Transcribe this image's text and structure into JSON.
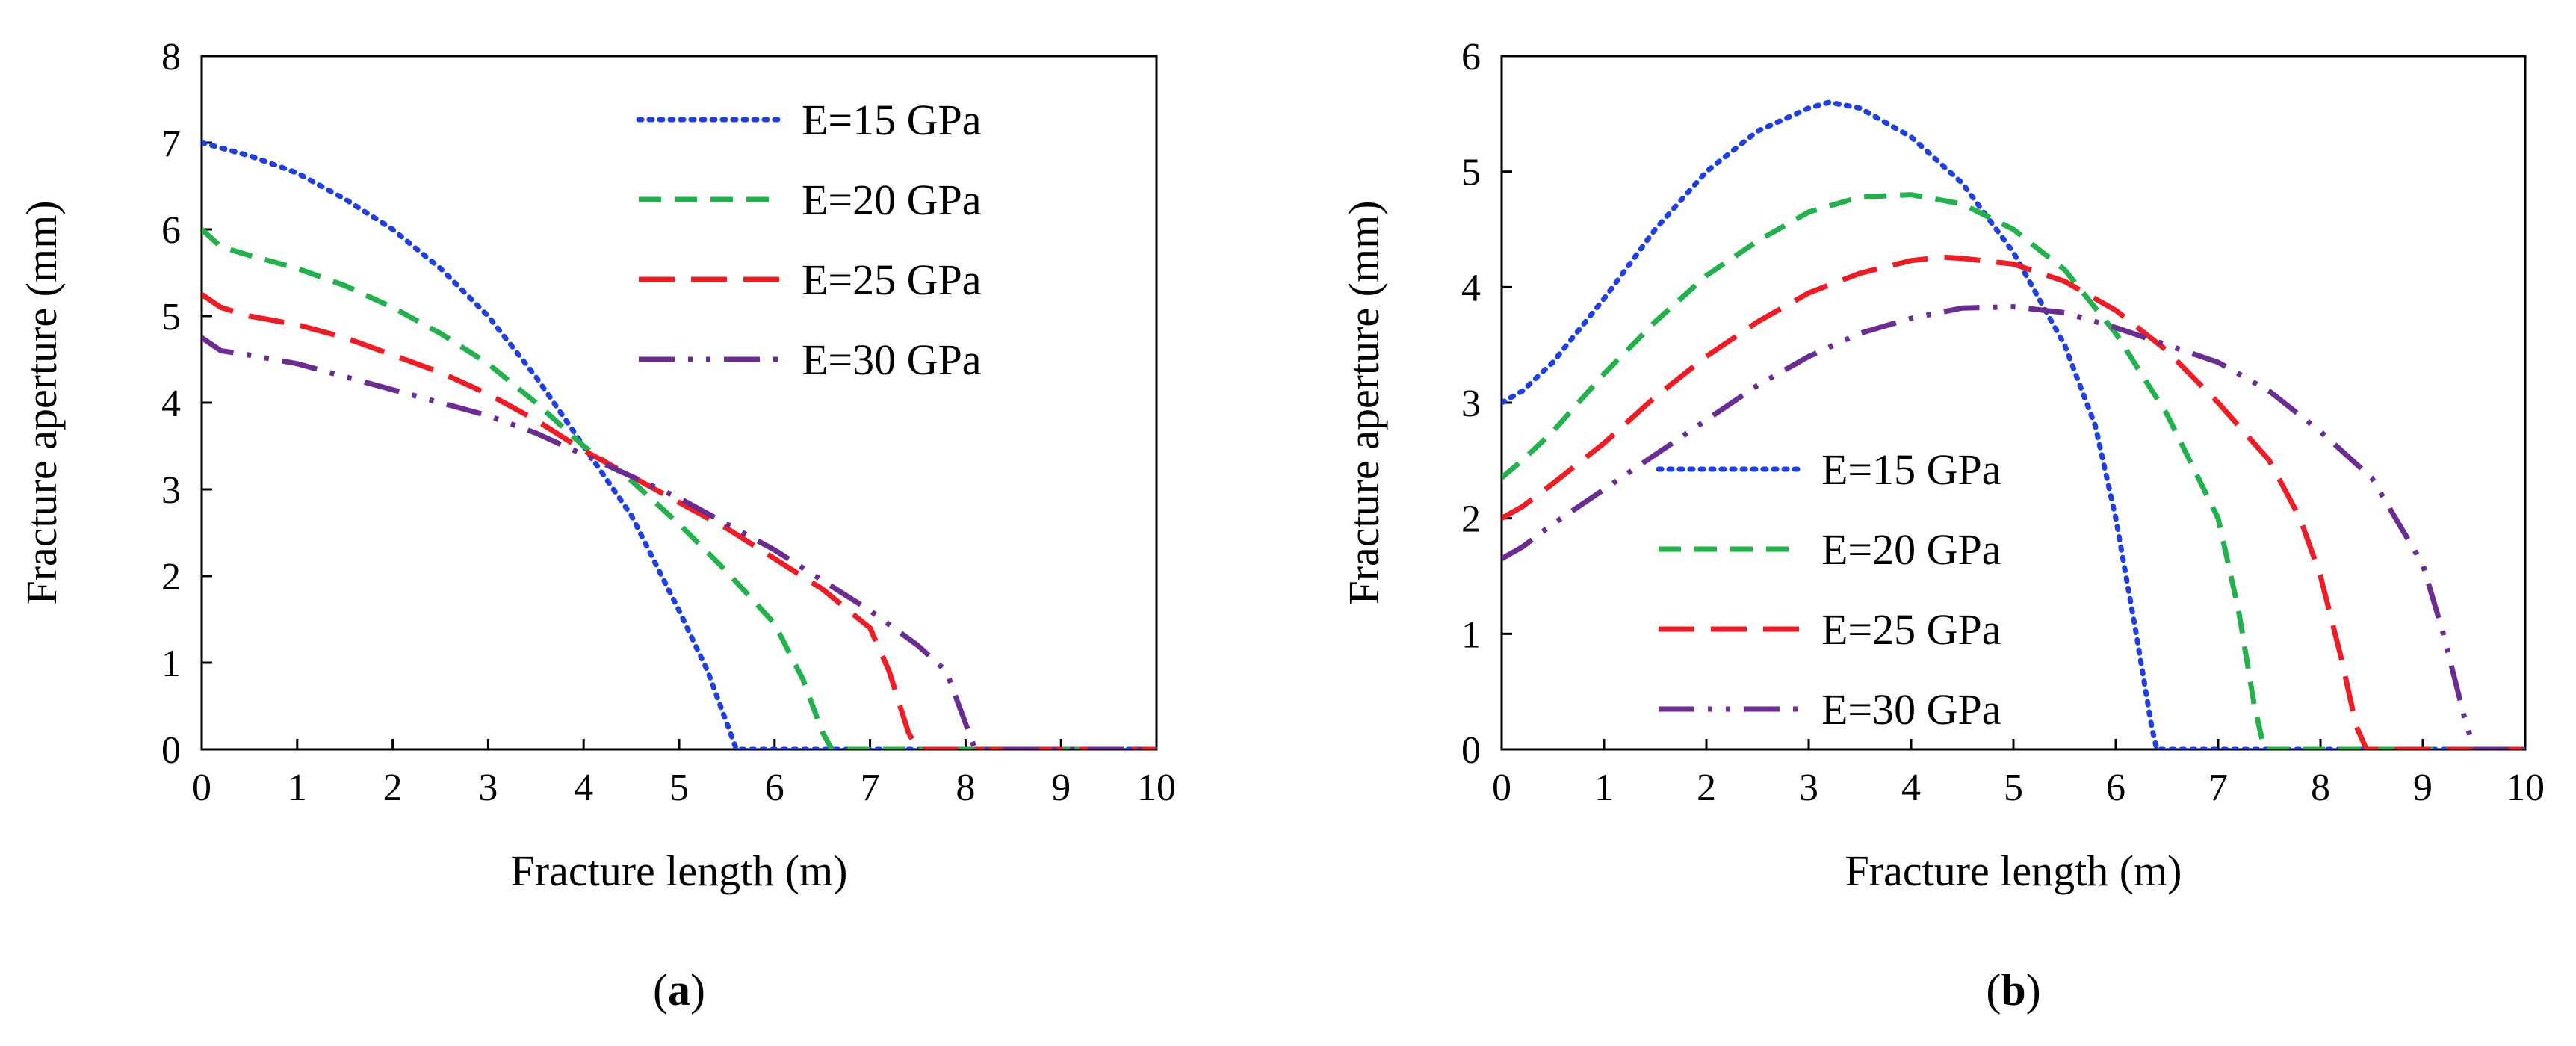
{
  "chart_data": [
    {
      "type": "line",
      "panel_label": {
        "open": "(",
        "letter": "a",
        "close": ")"
      },
      "xlabel": "Fracture length (m)",
      "ylabel": "Fracture aperture (mm)",
      "xlim": [
        0,
        10
      ],
      "ylim": [
        0,
        8
      ],
      "xticks": [
        "0",
        "1",
        "2",
        "3",
        "4",
        "5",
        "6",
        "7",
        "8",
        "9",
        "10"
      ],
      "yticks": [
        "0",
        "1",
        "2",
        "3",
        "4",
        "5",
        "6",
        "7",
        "8"
      ],
      "grid": false,
      "legend_position": "top-right",
      "series": [
        {
          "name": "E=15 GPa",
          "color": "#1f3fe0",
          "dash": "dotted",
          "x": [
            0,
            0.5,
            1,
            1.5,
            2,
            2.5,
            3,
            3.5,
            4,
            4.5,
            5,
            5.3,
            5.5,
            5.6,
            6,
            7,
            8,
            9,
            10
          ],
          "y": [
            7.0,
            6.85,
            6.65,
            6.35,
            6.0,
            5.55,
            5.0,
            4.3,
            3.5,
            2.7,
            1.6,
            0.9,
            0.3,
            0,
            0,
            0,
            0,
            0,
            0
          ]
        },
        {
          "name": "E=20 GPa",
          "color": "#22b14c",
          "dash": "dashed",
          "x": [
            0,
            0.2,
            0.5,
            1,
            1.5,
            2,
            2.5,
            3,
            3.5,
            4,
            4.5,
            5,
            5.5,
            6,
            6.3,
            6.5,
            6.6,
            7,
            8,
            9,
            10
          ],
          "y": [
            6.0,
            5.8,
            5.7,
            5.55,
            5.35,
            5.1,
            4.8,
            4.45,
            4.0,
            3.5,
            3.1,
            2.6,
            2.05,
            1.45,
            0.8,
            0.2,
            0,
            0,
            0,
            0,
            0
          ]
        },
        {
          "name": "E=25 GPa",
          "color": "#ee1c24",
          "dash": "longdash",
          "x": [
            0,
            0.2,
            0.5,
            1,
            1.5,
            2,
            2.5,
            3,
            3.5,
            4,
            4.5,
            5,
            5.5,
            6,
            6.5,
            7,
            7.2,
            7.4,
            7.5,
            8,
            9,
            10
          ],
          "y": [
            5.25,
            5.1,
            5.0,
            4.9,
            4.75,
            4.55,
            4.35,
            4.1,
            3.8,
            3.45,
            3.15,
            2.85,
            2.55,
            2.2,
            1.85,
            1.4,
            0.9,
            0.2,
            0,
            0,
            0,
            0
          ]
        },
        {
          "name": "E=30 GPa",
          "color": "#6a2c91",
          "dash": "dashdotdot",
          "x": [
            0,
            0.2,
            0.5,
            1,
            1.5,
            2,
            2.5,
            3,
            3.5,
            4,
            4.5,
            5,
            5.5,
            6,
            6.5,
            7,
            7.5,
            7.8,
            8,
            8.1,
            8.5,
            9,
            10
          ],
          "y": [
            4.75,
            4.6,
            4.55,
            4.45,
            4.3,
            4.15,
            4.0,
            3.85,
            3.65,
            3.4,
            3.15,
            2.9,
            2.6,
            2.3,
            1.95,
            1.6,
            1.2,
            0.9,
            0.3,
            0,
            0,
            0,
            0
          ]
        }
      ]
    },
    {
      "type": "line",
      "panel_label": {
        "open": "(",
        "letter": "b",
        "close": ")"
      },
      "xlabel": "Fracture length (m)",
      "ylabel": "Fracture aperture (mm)",
      "xlim": [
        0,
        10
      ],
      "ylim": [
        0,
        6
      ],
      "xticks": [
        "0",
        "1",
        "2",
        "3",
        "4",
        "5",
        "6",
        "7",
        "8",
        "9",
        "10"
      ],
      "yticks": [
        "0",
        "1",
        "2",
        "3",
        "4",
        "5",
        "6"
      ],
      "grid": false,
      "legend_position": "lower-left",
      "series": [
        {
          "name": "E=15 GPa",
          "color": "#1f3fe0",
          "dash": "dotted",
          "x": [
            0,
            0.2,
            0.5,
            1,
            1.5,
            2,
            2.5,
            3,
            3.2,
            3.5,
            4,
            4.5,
            5,
            5.5,
            5.8,
            6,
            6.2,
            6.35,
            6.4,
            7,
            8,
            9,
            10
          ],
          "y": [
            3.0,
            3.1,
            3.35,
            3.9,
            4.5,
            5.0,
            5.35,
            5.55,
            5.6,
            5.55,
            5.3,
            4.9,
            4.3,
            3.5,
            2.8,
            2.0,
            1.0,
            0.2,
            0,
            0,
            0,
            0,
            0
          ]
        },
        {
          "name": "E=20 GPa",
          "color": "#22b14c",
          "dash": "dashed",
          "x": [
            0,
            0.2,
            0.5,
            1,
            1.5,
            2,
            2.5,
            3,
            3.5,
            4,
            4.5,
            5,
            5.5,
            6,
            6.5,
            7,
            7.2,
            7.35,
            7.45,
            8,
            9,
            10
          ],
          "y": [
            2.35,
            2.5,
            2.75,
            3.25,
            3.7,
            4.1,
            4.4,
            4.65,
            4.78,
            4.8,
            4.72,
            4.5,
            4.15,
            3.6,
            2.9,
            2.0,
            1.2,
            0.4,
            0,
            0,
            0,
            0
          ]
        },
        {
          "name": "E=25 GPa",
          "color": "#ee1c24",
          "dash": "longdash",
          "x": [
            0,
            0.2,
            0.5,
            1,
            1.5,
            2,
            2.5,
            3,
            3.5,
            4,
            4.3,
            4.5,
            5,
            5.5,
            6,
            6.5,
            7,
            7.5,
            7.8,
            8,
            8.2,
            8.35,
            8.45,
            9,
            10
          ],
          "y": [
            2.0,
            2.1,
            2.3,
            2.65,
            3.05,
            3.4,
            3.7,
            3.95,
            4.12,
            4.23,
            4.26,
            4.25,
            4.2,
            4.05,
            3.8,
            3.45,
            3.0,
            2.5,
            2.0,
            1.5,
            0.8,
            0.2,
            0,
            0,
            0
          ]
        },
        {
          "name": "E=30 GPa",
          "color": "#6a2c91",
          "dash": "dashdotdot",
          "x": [
            0,
            0.2,
            0.5,
            1,
            1.5,
            2,
            2.5,
            3,
            3.5,
            4,
            4.5,
            5,
            5.5,
            6,
            6.5,
            7,
            7.5,
            8,
            8.5,
            9,
            9.2,
            9.4,
            9.5,
            10
          ],
          "y": [
            1.65,
            1.75,
            1.95,
            2.25,
            2.55,
            2.85,
            3.15,
            3.4,
            3.6,
            3.73,
            3.82,
            3.83,
            3.78,
            3.65,
            3.5,
            3.35,
            3.1,
            2.75,
            2.35,
            1.6,
            1.0,
            0.3,
            0,
            0
          ]
        }
      ]
    }
  ]
}
